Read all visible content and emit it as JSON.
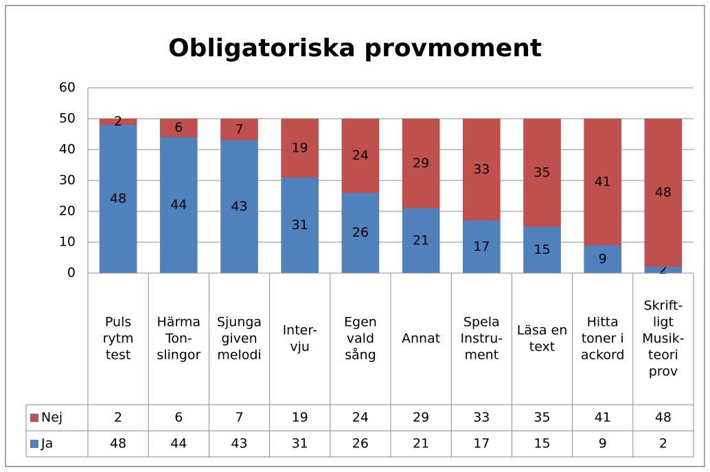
{
  "chart_data": {
    "type": "stacked_bar",
    "title": "Obligatoriska provmoment",
    "categories": [
      [
        "Puls",
        "rytm",
        "test"
      ],
      [
        "Härma",
        "Ton-",
        "slingor"
      ],
      [
        "Sjunga",
        "given",
        "melodi"
      ],
      [
        "Inter-",
        "vju"
      ],
      [
        "Egen",
        "vald",
        "sång"
      ],
      [
        "Annat"
      ],
      [
        "Spela",
        "Instru-",
        "ment"
      ],
      [
        "Läsa en",
        "text"
      ],
      [
        "Hitta",
        "toner i",
        "ackord"
      ],
      [
        "Skrift-",
        "ligt",
        "Musik-",
        "teori",
        "prov"
      ]
    ],
    "series": [
      {
        "name": "Ja",
        "color": "#4f81bd",
        "values": [
          48,
          44,
          43,
          31,
          26,
          21,
          17,
          15,
          9,
          2
        ]
      },
      {
        "name": "Nej",
        "color": "#c0504d",
        "values": [
          2,
          6,
          7,
          19,
          24,
          29,
          33,
          35,
          41,
          48
        ]
      }
    ],
    "ylim": [
      0,
      60
    ],
    "yticks": [
      0,
      10,
      20,
      30,
      40,
      50,
      60
    ],
    "grid": true
  }
}
